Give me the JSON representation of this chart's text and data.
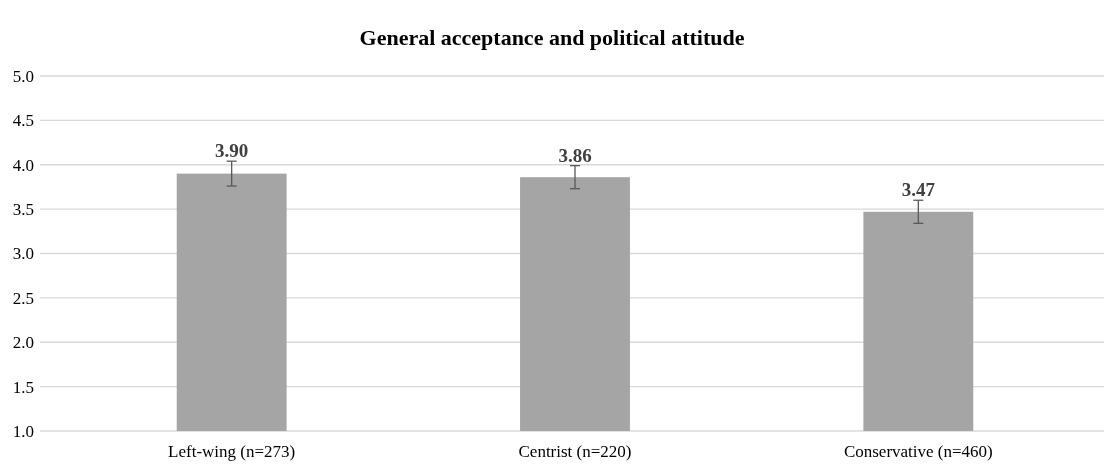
{
  "chart_data": {
    "type": "bar",
    "title": "General acceptance and political attitude",
    "categories": [
      "Left-wing (n=273)",
      "Centrist (n=220)",
      "Conservative (n=460)"
    ],
    "values": [
      3.9,
      3.86,
      3.47
    ],
    "errors": [
      0.14,
      0.13,
      0.13
    ],
    "color": "#a5a5a5",
    "ylim": [
      1.0,
      5.0
    ],
    "yticks": [
      {
        "value": 1,
        "label": "1.0"
      },
      {
        "value": 1.5,
        "label": "1.5"
      },
      {
        "value": 2,
        "label": "2.0"
      },
      {
        "value": 2.5,
        "label": "2.5"
      },
      {
        "value": 3,
        "label": "3.0"
      },
      {
        "value": 3.5,
        "label": "3.5"
      },
      {
        "value": 4,
        "label": "4.0"
      },
      {
        "value": 4.5,
        "label": "4.5"
      },
      {
        "value": 5,
        "label": "5.0"
      }
    ],
    "grid": "y",
    "value_labels": [
      "3.90",
      "3.86",
      "3.47"
    ]
  }
}
